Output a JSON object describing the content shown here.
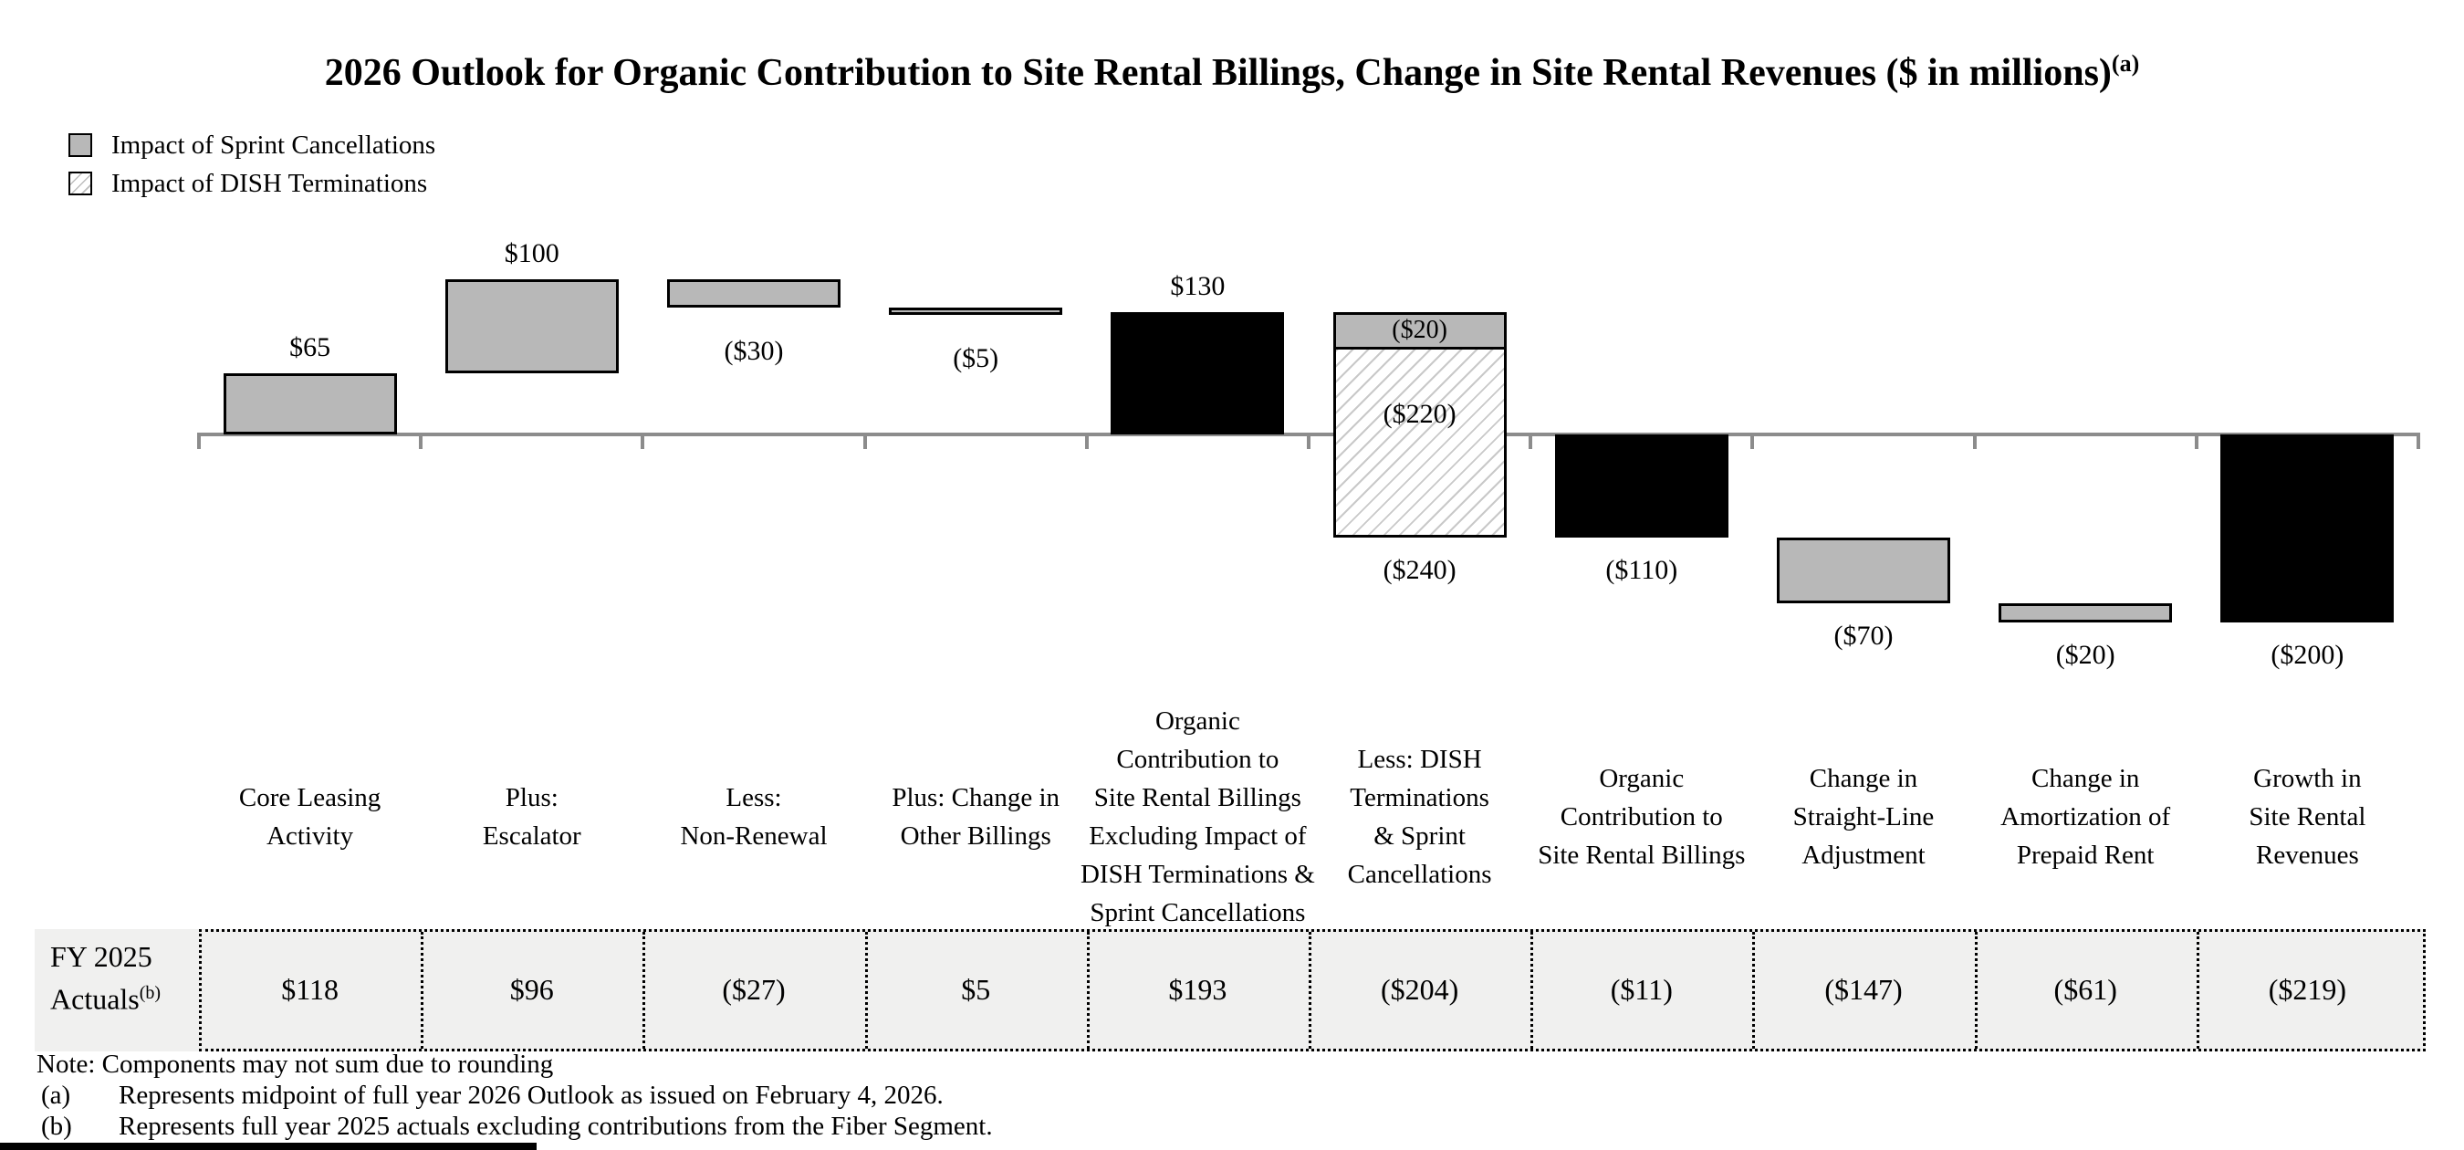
{
  "title": {
    "text": "2026 Outlook for Organic Contribution to Site Rental Billings, Change in Site Rental Revenues ($ in millions)",
    "sup": "(a)"
  },
  "legend": {
    "items": [
      {
        "name": "sprint",
        "label": "Impact of Sprint Cancellations",
        "swatch_color": "#b8b8b8"
      },
      {
        "name": "dish",
        "label": "Impact of DISH Terminations",
        "swatch_pattern": "diagonal-hatch"
      }
    ]
  },
  "chart_data": {
    "type": "bar",
    "subtype": "waterfall",
    "title": "2026 Outlook for Organic Contribution to Site Rental Billings, Change in Site Rental Revenues ($ in millions)",
    "unit": "$ millions",
    "ylim": [
      -260,
      200
    ],
    "grid": false,
    "legend_position": "top-left",
    "colors": {
      "gray_fill": "#b8b8b8",
      "black_fill": "#000000",
      "axis": "#8c8c8c",
      "hatch_line": "#c9c9c9",
      "border": "#000000"
    },
    "bars": [
      {
        "category_lines": [
          "Core Leasing",
          "Activity"
        ],
        "value": 65,
        "start": 0,
        "end": 65,
        "label": "$65",
        "label_pos": "above",
        "style": "gray"
      },
      {
        "category_lines": [
          "Plus:",
          "Escalator"
        ],
        "value": 100,
        "start": 65,
        "end": 165,
        "label": "$100",
        "label_pos": "above",
        "style": "gray"
      },
      {
        "category_lines": [
          "Less:",
          "Non-Renewal"
        ],
        "value": -30,
        "start": 165,
        "end": 135,
        "label": "($30)",
        "label_pos": "below",
        "style": "gray"
      },
      {
        "category_lines": [
          "Plus: Change in",
          "Other Billings"
        ],
        "value": -5,
        "start": 135,
        "end": 130,
        "label": "($5)",
        "label_pos": "below",
        "style": "gray"
      },
      {
        "category_lines": [
          "Organic",
          "Contribution to",
          "Site Rental Billings",
          "Excluding Impact of",
          "DISH Terminations &",
          "Sprint Cancellations"
        ],
        "value": 130,
        "start": 0,
        "end": 130,
        "label": "$130",
        "label_pos": "above",
        "style": "black",
        "is_total": true
      },
      {
        "category_lines": [
          "Less: DISH",
          "Terminations",
          "& Sprint",
          "Cancellations"
        ],
        "value": -240,
        "start": 130,
        "end": -110,
        "label": "($240)",
        "label_pos": "below",
        "style": "stacked",
        "segments": [
          {
            "name": "sprint",
            "value": -20,
            "label": "($20)"
          },
          {
            "name": "dish",
            "value": -220,
            "label": "($220)"
          }
        ]
      },
      {
        "category_lines": [
          "Organic",
          "Contribution to",
          "Site Rental Billings"
        ],
        "value": -110,
        "start": 0,
        "end": -110,
        "label": "($110)",
        "label_pos": "below",
        "style": "black",
        "is_total": true
      },
      {
        "category_lines": [
          "Change in",
          "Straight-Line",
          "Adjustment"
        ],
        "value": -70,
        "start": -110,
        "end": -180,
        "label": "($70)",
        "label_pos": "below",
        "style": "gray"
      },
      {
        "category_lines": [
          "Change in",
          "Amortization of",
          "Prepaid Rent"
        ],
        "value": -20,
        "start": -180,
        "end": -200,
        "label": "($20)",
        "label_pos": "below",
        "style": "gray"
      },
      {
        "category_lines": [
          "Growth in",
          "Site Rental",
          "Revenues"
        ],
        "value": -200,
        "start": 0,
        "end": -200,
        "label": "($200)",
        "label_pos": "below",
        "style": "black",
        "is_total": true
      }
    ]
  },
  "fy_table": {
    "header_lines": [
      "FY 2025",
      "Actuals"
    ],
    "header_sup": "(b)",
    "values": [
      "$118",
      "$96",
      "($27)",
      "$5",
      "$193",
      "($204)",
      "($11)",
      "($147)",
      "($61)",
      "($219)"
    ]
  },
  "notes": {
    "note": "Note: Components may not sum due to rounding",
    "footnotes": [
      {
        "marker": "(a)",
        "text": "Represents midpoint of full year 2026 Outlook as issued on February 4, 2026."
      },
      {
        "marker": "(b)",
        "text": "Represents full year 2025 actuals excluding contributions from the Fiber Segment."
      }
    ]
  }
}
